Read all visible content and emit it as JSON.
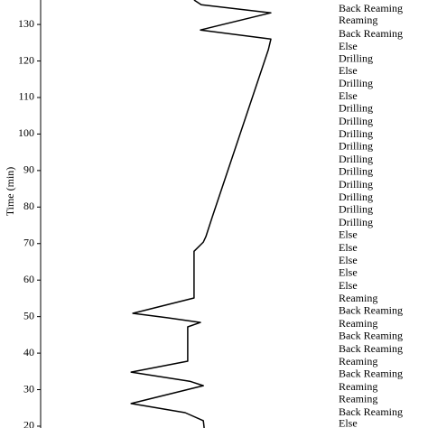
{
  "chart_data": {
    "type": "line",
    "y_label": "Time (min)",
    "ylim": [
      19.5,
      136.7
    ],
    "yticks": [
      20,
      30,
      40,
      50,
      60,
      70,
      80,
      90,
      100,
      110,
      120,
      130
    ],
    "xlim": [
      0,
      100
    ],
    "color": "#000000",
    "x": [
      53.1,
      55.6,
      79.7,
      55.3,
      79.7,
      78.8,
      59.4,
      57.2,
      56.3,
      53.1,
      53.1,
      31.9,
      43.8,
      55.3,
      50.9,
      50.9,
      31.3,
      51.6,
      56.3,
      31.3,
      50.0,
      56.3,
      56.6
    ],
    "values": [
      136.7,
      135.4,
      133.2,
      128.5,
      126.0,
      123.1,
      77.3,
      71.9,
      70.4,
      67.9,
      55.1,
      50.9,
      49.7,
      48.4,
      47.2,
      37.8,
      34.8,
      32.3,
      31.1,
      26.2,
      23.7,
      21.5,
      19.5
    ],
    "annotations": [
      {
        "text": "Back Reaming",
        "y": 134.2
      },
      {
        "text": "Reaming",
        "y": 131.0
      },
      {
        "text": "Back Reaming",
        "y": 127.3
      },
      {
        "text": "Else",
        "y": 123.8
      },
      {
        "text": "Drilling",
        "y": 120.4
      },
      {
        "text": "Else",
        "y": 117.1
      },
      {
        "text": "Drilling",
        "y": 113.7
      },
      {
        "text": "Else",
        "y": 110.2
      },
      {
        "text": "Drilling",
        "y": 106.8
      },
      {
        "text": "Drilling",
        "y": 103.3
      },
      {
        "text": "Drilling",
        "y": 99.8
      },
      {
        "text": "Drilling",
        "y": 96.4
      },
      {
        "text": "Drilling",
        "y": 92.9
      },
      {
        "text": "Drilling",
        "y": 89.5
      },
      {
        "text": "Drilling",
        "y": 86.0
      },
      {
        "text": "Drilling",
        "y": 82.5
      },
      {
        "text": "Drilling",
        "y": 79.1
      },
      {
        "text": "Drilling",
        "y": 75.6
      },
      {
        "text": "Else",
        "y": 72.2
      },
      {
        "text": "Else",
        "y": 68.7
      },
      {
        "text": "Else",
        "y": 65.2
      },
      {
        "text": "Else",
        "y": 61.8
      },
      {
        "text": "Else",
        "y": 58.3
      },
      {
        "text": "Reaming",
        "y": 54.8
      },
      {
        "text": "Back Reaming",
        "y": 51.4
      },
      {
        "text": "Reaming",
        "y": 47.9
      },
      {
        "text": "Back Reaming",
        "y": 44.5
      },
      {
        "text": "Back Reaming",
        "y": 41.0
      },
      {
        "text": "Reaming",
        "y": 37.5
      },
      {
        "text": "Back Reaming",
        "y": 34.1
      },
      {
        "text": "Reaming",
        "y": 30.6
      },
      {
        "text": "Reaming",
        "y": 27.2
      },
      {
        "text": "Back Reaming",
        "y": 23.7
      },
      {
        "text": "Else",
        "y": 20.5
      }
    ]
  }
}
